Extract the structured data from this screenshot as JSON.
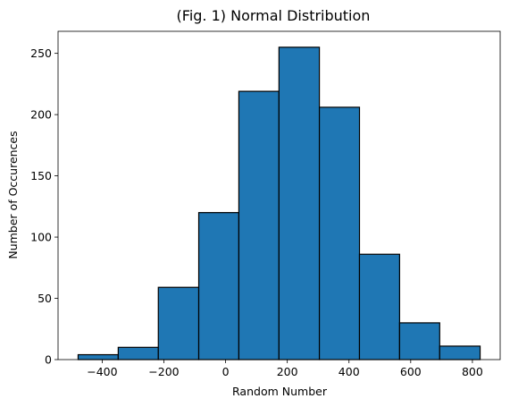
{
  "chart_data": {
    "type": "bar",
    "title": "(Fig. 1) Normal Distribution",
    "xlabel": "Random Number",
    "ylabel": "Number of Occurences",
    "bin_edges": [
      -478,
      -348,
      -218,
      -87,
      43,
      173,
      304,
      434,
      564,
      694,
      825
    ],
    "values": [
      4,
      10,
      59,
      120,
      219,
      255,
      206,
      86,
      30,
      11
    ],
    "xlim": [
      -543,
      890
    ],
    "ylim": [
      0,
      268
    ],
    "x_ticks": [
      -400,
      -200,
      0,
      200,
      400,
      600,
      800
    ],
    "y_ticks": [
      0,
      50,
      100,
      150,
      200,
      250
    ],
    "bar_color": "#1f77b4",
    "edge_color": "#000000",
    "grid": false,
    "legend": "none"
  }
}
